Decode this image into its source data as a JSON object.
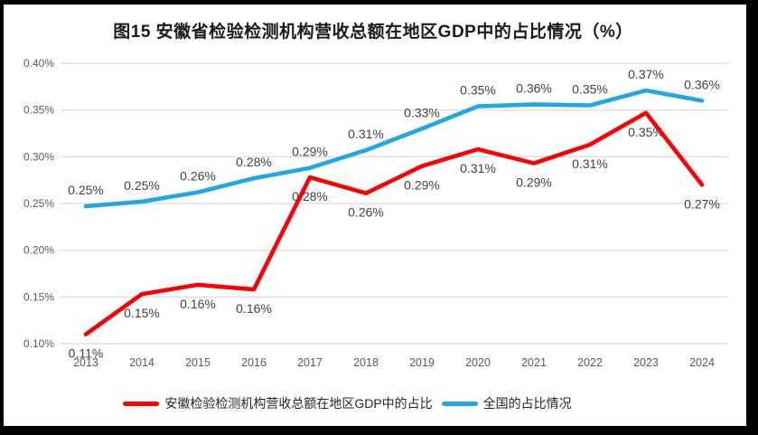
{
  "chart_data": {
    "type": "line",
    "title": "图15 安徽省检验检测机构营收总额在地区GDP中的占比情况（%）",
    "categories": [
      "2013",
      "2014",
      "2015",
      "2016",
      "2017",
      "2018",
      "2019",
      "2020",
      "2021",
      "2022",
      "2023",
      "2024"
    ],
    "series": [
      {
        "name": "安徽检验检测机构营收总额在地区GDP中的占比",
        "color": "#FE0000",
        "label_position": "below",
        "values": [
          0.11,
          0.153,
          0.163,
          0.158,
          0.278,
          0.261,
          0.29,
          0.308,
          0.293,
          0.313,
          0.347,
          0.27
        ],
        "labels": [
          "0.11%",
          "0.15%",
          "0.16%",
          "0.16%",
          "0.28%",
          "0.26%",
          "0.29%",
          "0.31%",
          "0.29%",
          "0.31%",
          "0.35%",
          "0.27%"
        ]
      },
      {
        "name": "全国的占比情况",
        "color": "#1FA8E4",
        "label_position": "above",
        "values": [
          0.247,
          0.252,
          0.262,
          0.277,
          0.288,
          0.307,
          0.33,
          0.354,
          0.356,
          0.355,
          0.371,
          0.36
        ],
        "labels": [
          "0.25%",
          "0.25%",
          "0.26%",
          "0.28%",
          "0.29%",
          "0.31%",
          "0.33%",
          "0.35%",
          "0.36%",
          "0.35%",
          "0.37%",
          "0.36%"
        ]
      }
    ],
    "y_axis": {
      "min": 0.1,
      "max": 0.4,
      "step": 0.05,
      "tick_labels": [
        "0.10%",
        "0.15%",
        "0.20%",
        "0.25%",
        "0.30%",
        "0.35%",
        "0.40%"
      ]
    },
    "x_axis": {
      "tick_labels": [
        "2013",
        "2014",
        "2015",
        "2016",
        "2017",
        "2018",
        "2019",
        "2020",
        "2021",
        "2022",
        "2023",
        "2024"
      ]
    },
    "grid": "horizontal",
    "legend_position": "bottom"
  },
  "colors": {
    "anhui_line": "#FE0000",
    "national_line": "#1FA8E4",
    "gridline": "#D9D9D9",
    "axis_text": "#595959",
    "data_label": "#404040",
    "frame": "#000000",
    "background": "#FFFFFF"
  }
}
